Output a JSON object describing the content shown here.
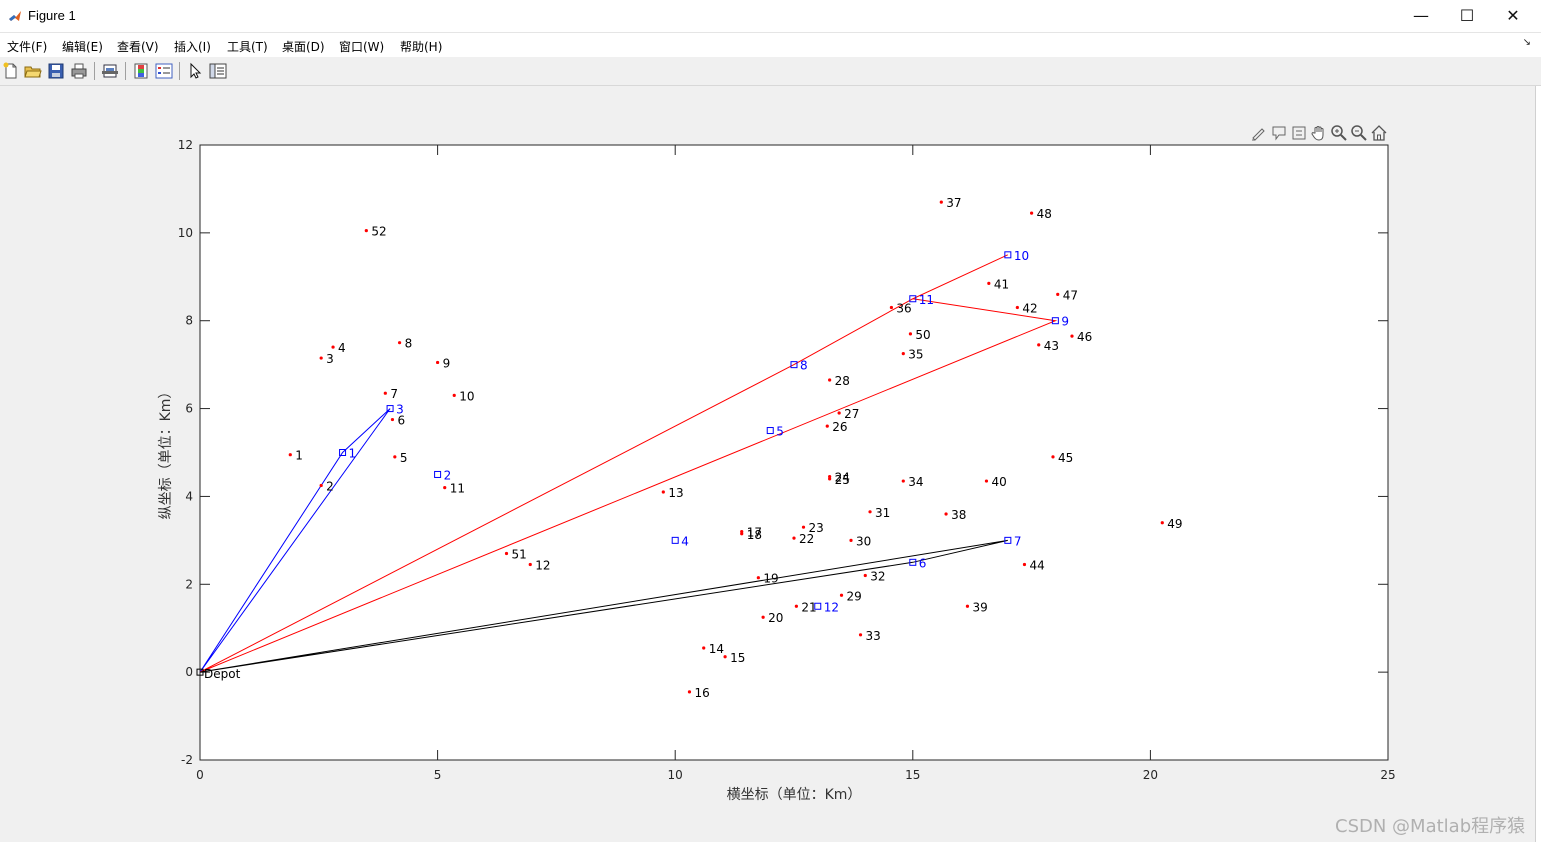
{
  "window": {
    "title": "Figure 1",
    "minimize": "—",
    "maximize": "☐",
    "close": "✕"
  },
  "menu": [
    "文件(F)",
    "编辑(E)",
    "查看(V)",
    "插入(I)",
    "工具(T)",
    "桌面(D)",
    "窗口(W)",
    "帮助(H)"
  ],
  "toolbar_icons": [
    "new-figure-icon",
    "open-file-icon",
    "save-icon",
    "print-icon",
    "print-preview-icon",
    "colorbar-icon",
    "legend-icon",
    "pointer-icon",
    "property-editor-icon"
  ],
  "axes_toolbar_icons": [
    "brush-icon",
    "data-tip-icon",
    "rotate-icon",
    "pan-icon",
    "zoom-in-icon",
    "zoom-out-icon",
    "home-icon"
  ],
  "watermark": "CSDN @Matlab程序猿",
  "colors": {
    "customer": "#ff0000",
    "station": "#0000ff",
    "route_blue": "#0000ff",
    "route_red": "#ff0000",
    "route_black": "#000000"
  },
  "chart_data": {
    "type": "scatter",
    "xlabel": "横坐标（单位：Km）",
    "ylabel": "纵坐标（单位：Km）",
    "xlim": [
      0,
      25
    ],
    "ylim": [
      -2,
      12
    ],
    "xticks": [
      "0",
      "5",
      "10",
      "15",
      "20",
      "25"
    ],
    "yticks": [
      "-2",
      "0",
      "2",
      "4",
      "6",
      "8",
      "10",
      "12"
    ],
    "depot": {
      "label": "Depot",
      "x": 0,
      "y": 0
    },
    "customers": [
      {
        "label": "1",
        "x": 1.9,
        "y": 4.95
      },
      {
        "label": "2",
        "x": 2.55,
        "y": 4.25
      },
      {
        "label": "3",
        "x": 2.55,
        "y": 7.15
      },
      {
        "label": "4",
        "x": 2.8,
        "y": 7.4
      },
      {
        "label": "5",
        "x": 4.1,
        "y": 4.9
      },
      {
        "label": "6",
        "x": 4.05,
        "y": 5.75
      },
      {
        "label": "7",
        "x": 3.9,
        "y": 6.35
      },
      {
        "label": "8",
        "x": 4.2,
        "y": 7.5
      },
      {
        "label": "9",
        "x": 5.0,
        "y": 7.05
      },
      {
        "label": "10",
        "x": 5.35,
        "y": 6.3
      },
      {
        "label": "11",
        "x": 5.15,
        "y": 4.2
      },
      {
        "label": "12",
        "x": 6.95,
        "y": 2.45
      },
      {
        "label": "13",
        "x": 9.75,
        "y": 4.1
      },
      {
        "label": "14",
        "x": 10.6,
        "y": 0.55
      },
      {
        "label": "15",
        "x": 11.05,
        "y": 0.35
      },
      {
        "label": "16",
        "x": 10.3,
        "y": -0.45
      },
      {
        "label": "17",
        "x": 11.4,
        "y": 3.2
      },
      {
        "label": "18",
        "x": 11.4,
        "y": 3.15
      },
      {
        "label": "19",
        "x": 11.75,
        "y": 2.15
      },
      {
        "label": "20",
        "x": 11.85,
        "y": 1.25
      },
      {
        "label": "21",
        "x": 12.55,
        "y": 1.5
      },
      {
        "label": "22",
        "x": 12.5,
        "y": 3.05
      },
      {
        "label": "23",
        "x": 12.7,
        "y": 3.3
      },
      {
        "label": "24",
        "x": 13.25,
        "y": 4.45
      },
      {
        "label": "25",
        "x": 13.25,
        "y": 4.4
      },
      {
        "label": "26",
        "x": 13.2,
        "y": 5.6
      },
      {
        "label": "27",
        "x": 13.45,
        "y": 5.9
      },
      {
        "label": "28",
        "x": 13.25,
        "y": 6.65
      },
      {
        "label": "29",
        "x": 13.5,
        "y": 1.75
      },
      {
        "label": "30",
        "x": 13.7,
        "y": 3.0
      },
      {
        "label": "31",
        "x": 14.1,
        "y": 3.65
      },
      {
        "label": "32",
        "x": 14.0,
        "y": 2.2
      },
      {
        "label": "33",
        "x": 13.9,
        "y": 0.85
      },
      {
        "label": "34",
        "x": 14.8,
        "y": 4.35
      },
      {
        "label": "35",
        "x": 14.8,
        "y": 7.25
      },
      {
        "label": "36",
        "x": 14.55,
        "y": 8.3
      },
      {
        "label": "37",
        "x": 15.6,
        "y": 10.7
      },
      {
        "label": "38",
        "x": 15.7,
        "y": 3.6
      },
      {
        "label": "39",
        "x": 16.15,
        "y": 1.5
      },
      {
        "label": "40",
        "x": 16.55,
        "y": 4.35
      },
      {
        "label": "41",
        "x": 16.6,
        "y": 8.85
      },
      {
        "label": "42",
        "x": 17.2,
        "y": 8.3
      },
      {
        "label": "43",
        "x": 17.65,
        "y": 7.45
      },
      {
        "label": "44",
        "x": 17.35,
        "y": 2.45
      },
      {
        "label": "45",
        "x": 17.95,
        "y": 4.9
      },
      {
        "label": "46",
        "x": 18.35,
        "y": 7.65
      },
      {
        "label": "47",
        "x": 18.05,
        "y": 8.6
      },
      {
        "label": "48",
        "x": 17.5,
        "y": 10.45
      },
      {
        "label": "49",
        "x": 20.25,
        "y": 3.4
      },
      {
        "label": "50",
        "x": 14.95,
        "y": 7.7
      },
      {
        "label": "51",
        "x": 6.45,
        "y": 2.7
      },
      {
        "label": "52",
        "x": 3.5,
        "y": 10.05
      }
    ],
    "stations": [
      {
        "label": "1",
        "x": 3.0,
        "y": 5.0
      },
      {
        "label": "2",
        "x": 5.0,
        "y": 4.5
      },
      {
        "label": "3",
        "x": 4.0,
        "y": 6.0
      },
      {
        "label": "4",
        "x": 10.0,
        "y": 3.0
      },
      {
        "label": "5",
        "x": 12.0,
        "y": 5.5
      },
      {
        "label": "6",
        "x": 15.0,
        "y": 2.5
      },
      {
        "label": "7",
        "x": 17.0,
        "y": 3.0
      },
      {
        "label": "8",
        "x": 12.5,
        "y": 7.0
      },
      {
        "label": "9",
        "x": 18.0,
        "y": 8.0
      },
      {
        "label": "10",
        "x": 17.0,
        "y": 9.5
      },
      {
        "label": "11",
        "x": 15.0,
        "y": 8.5
      },
      {
        "label": "12",
        "x": 13.0,
        "y": 1.5
      }
    ],
    "routes": [
      {
        "color": "#0000ff",
        "path": [
          [
            0,
            0
          ],
          [
            3,
            5
          ],
          [
            4,
            6
          ],
          [
            0,
            0
          ]
        ]
      },
      {
        "color": "#ff0000",
        "path": [
          [
            0,
            0
          ],
          [
            12.5,
            7
          ],
          [
            15,
            8.5
          ],
          [
            17,
            9.5
          ],
          [
            15,
            8.5
          ],
          [
            18,
            8
          ],
          [
            0,
            0
          ]
        ]
      },
      {
        "color": "#000000",
        "path": [
          [
            0,
            0
          ],
          [
            15,
            2.5
          ],
          [
            17,
            3
          ],
          [
            0,
            0
          ]
        ]
      }
    ]
  }
}
